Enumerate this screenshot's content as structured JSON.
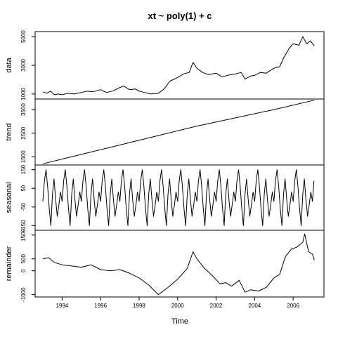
{
  "chart_data": {
    "type": "line",
    "title": "xt ~ poly(1) + c",
    "xlabel": "Time",
    "xlim": [
      1992.6,
      2007.6
    ],
    "x_ticks": [
      1994,
      1996,
      1998,
      2000,
      2002,
      2004,
      2006
    ],
    "x_tick_labels": [
      "1994",
      "1996",
      "1998",
      "2000",
      "2002",
      "2004",
      "2006"
    ],
    "panels": [
      {
        "name": "data",
        "ylabel": "data",
        "ylim": [
          650,
          5350
        ],
        "y_ticks": [
          1000,
          3000,
          5000
        ],
        "y_tick_labels": [
          "1000",
          "3000",
          "5000"
        ],
        "points": [
          [
            1993.0,
            1150
          ],
          [
            1993.2,
            1050
          ],
          [
            1993.4,
            1200
          ],
          [
            1993.6,
            950
          ],
          [
            1993.8,
            1000
          ],
          [
            1994.0,
            950
          ],
          [
            1994.3,
            1050
          ],
          [
            1994.6,
            1000
          ],
          [
            1995.0,
            1100
          ],
          [
            1995.3,
            1200
          ],
          [
            1995.6,
            1150
          ],
          [
            1996.0,
            1300
          ],
          [
            1996.3,
            1100
          ],
          [
            1996.6,
            1200
          ],
          [
            1997.0,
            1450
          ],
          [
            1997.2,
            1550
          ],
          [
            1997.5,
            1300
          ],
          [
            1997.8,
            1350
          ],
          [
            1998.0,
            1200
          ],
          [
            1998.3,
            1100
          ],
          [
            1998.6,
            1000
          ],
          [
            1999.0,
            1050
          ],
          [
            1999.3,
            1350
          ],
          [
            1999.6,
            1900
          ],
          [
            2000.0,
            2150
          ],
          [
            2000.3,
            2400
          ],
          [
            2000.6,
            2500
          ],
          [
            2000.8,
            3200
          ],
          [
            2001.0,
            2800
          ],
          [
            2001.3,
            2500
          ],
          [
            2001.6,
            2350
          ],
          [
            2002.0,
            2450
          ],
          [
            2002.3,
            2200
          ],
          [
            2002.6,
            2300
          ],
          [
            2003.0,
            2400
          ],
          [
            2003.3,
            2500
          ],
          [
            2003.5,
            2050
          ],
          [
            2003.8,
            2250
          ],
          [
            2004.0,
            2300
          ],
          [
            2004.3,
            2500
          ],
          [
            2004.6,
            2450
          ],
          [
            2005.0,
            2800
          ],
          [
            2005.3,
            2900
          ],
          [
            2005.5,
            3500
          ],
          [
            2005.8,
            4200
          ],
          [
            2006.0,
            4500
          ],
          [
            2006.3,
            4400
          ],
          [
            2006.5,
            5000
          ],
          [
            2006.7,
            4500
          ],
          [
            2006.9,
            4700
          ],
          [
            2007.1,
            4350
          ]
        ]
      },
      {
        "name": "trend",
        "ylabel": "trend",
        "ylim": [
          1150,
          3950
        ],
        "y_ticks": [
          1500,
          2500,
          3500
        ],
        "y_tick_labels": [
          "1500",
          "2500",
          "3500"
        ],
        "points": [
          [
            1993.0,
            1200
          ],
          [
            1995.0,
            1600
          ],
          [
            1997.0,
            2000
          ],
          [
            1999.0,
            2400
          ],
          [
            2001.0,
            2800
          ],
          [
            2003.0,
            3150
          ],
          [
            2005.0,
            3500
          ],
          [
            2007.1,
            3900
          ]
        ]
      },
      {
        "name": "seasonal",
        "ylabel": "seasonal",
        "ylim": [
          -175,
          175
        ],
        "y_ticks": [
          -150,
          -50,
          50,
          150
        ],
        "y_tick_labels": [
          "-150",
          "-50",
          "50",
          "150"
        ],
        "period": 1,
        "year_start": 1993.0,
        "year_end": 2007.1,
        "pattern": [
          -20,
          90,
          150,
          60,
          -60,
          -150,
          20,
          100,
          -10,
          -100,
          -40,
          30
        ]
      },
      {
        "name": "remainder",
        "ylabel": "remainder",
        "ylim": [
          -1100,
          1700
        ],
        "y_ticks": [
          -1000,
          0,
          500,
          1500
        ],
        "y_tick_labels": [
          "-1000",
          "0",
          "500",
          "1500"
        ],
        "points": [
          [
            1993.0,
            500
          ],
          [
            1993.3,
            550
          ],
          [
            1993.6,
            350
          ],
          [
            1994.0,
            250
          ],
          [
            1994.5,
            200
          ],
          [
            1995.0,
            150
          ],
          [
            1995.5,
            250
          ],
          [
            1996.0,
            50
          ],
          [
            1996.5,
            0
          ],
          [
            1997.0,
            50
          ],
          [
            1997.5,
            -100
          ],
          [
            1998.0,
            -300
          ],
          [
            1998.5,
            -600
          ],
          [
            1999.0,
            -1000
          ],
          [
            1999.5,
            -700
          ],
          [
            2000.0,
            -350
          ],
          [
            2000.5,
            100
          ],
          [
            2000.8,
            800
          ],
          [
            2001.0,
            500
          ],
          [
            2001.4,
            100
          ],
          [
            2001.8,
            -200
          ],
          [
            2002.2,
            -550
          ],
          [
            2002.5,
            -500
          ],
          [
            2002.8,
            -650
          ],
          [
            2003.2,
            -400
          ],
          [
            2003.5,
            -900
          ],
          [
            2003.8,
            -800
          ],
          [
            2004.2,
            -850
          ],
          [
            2004.6,
            -700
          ],
          [
            2005.0,
            -300
          ],
          [
            2005.3,
            -150
          ],
          [
            2005.6,
            600
          ],
          [
            2005.9,
            900
          ],
          [
            2006.2,
            1000
          ],
          [
            2006.5,
            1200
          ],
          [
            2006.6,
            1550
          ],
          [
            2006.8,
            800
          ],
          [
            2007.0,
            700
          ],
          [
            2007.1,
            450
          ]
        ]
      }
    ]
  }
}
